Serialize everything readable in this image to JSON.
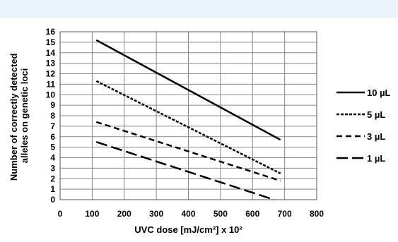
{
  "chart_data": {
    "type": "line",
    "xlabel": "UVC dose [mJ/cm²] x 10²",
    "ylabel_lines": [
      "Number of correctly detected",
      "alleles on genetic loci"
    ],
    "xlim": [
      0,
      800
    ],
    "ylim": [
      0,
      16
    ],
    "x_ticks": [
      0,
      100,
      200,
      300,
      400,
      500,
      600,
      700,
      800
    ],
    "y_ticks": [
      0,
      1,
      2,
      3,
      4,
      5,
      6,
      7,
      8,
      9,
      10,
      11,
      12,
      13,
      14,
      15,
      16
    ],
    "grid": true,
    "legend_position": "right",
    "series": [
      {
        "name": "10 µL",
        "dash": "solid",
        "points": [
          [
            113,
            15.2
          ],
          [
            687,
            5.7
          ]
        ]
      },
      {
        "name": "5 µL",
        "dash": "dotted",
        "points": [
          [
            113,
            11.3
          ],
          [
            687,
            2.5
          ]
        ]
      },
      {
        "name": "3 µL",
        "dash": "dashed",
        "points": [
          [
            113,
            7.4
          ],
          [
            687,
            1.8
          ]
        ]
      },
      {
        "name": "1 µL",
        "dash": "longdash",
        "points": [
          [
            113,
            5.5
          ],
          [
            667,
            0
          ]
        ]
      }
    ]
  }
}
